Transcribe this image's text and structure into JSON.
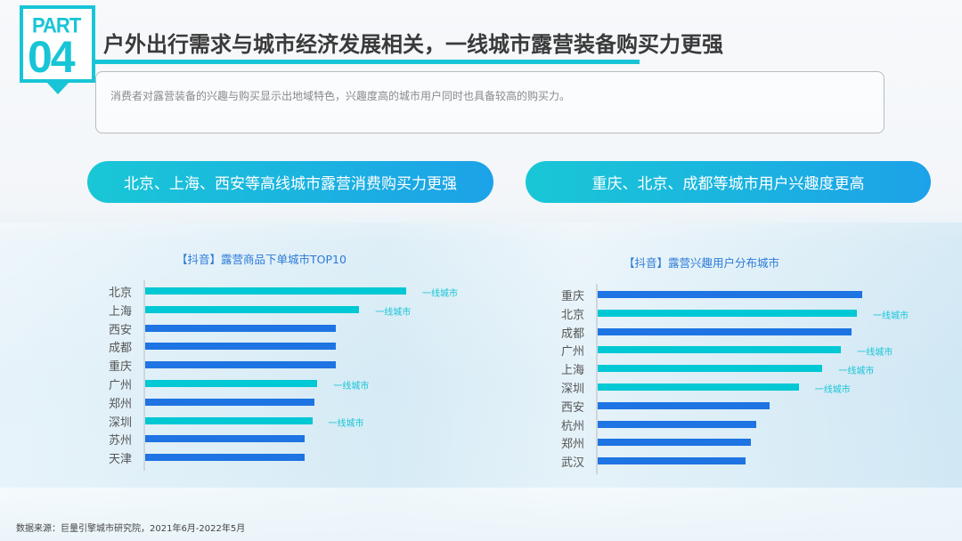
{
  "badge": {
    "part": "PART",
    "number": "04"
  },
  "header": {
    "title": "户外出行需求与城市经济发展相关，一线城市露营装备购买力更强"
  },
  "description": "消费者对露营装备的兴趣与购买显示出地域特色，兴趣度高的城市用户同时也具备较高的购买力。",
  "pills": [
    "北京、上海、西安等高线城市露营消费购买力更强",
    "重庆、北京、成都等城市用户兴趣度更高"
  ],
  "colors": {
    "accent": "#17c5d6",
    "tier1": "#00c8d4",
    "other": "#1e74e2"
  },
  "chart_data": [
    {
      "type": "bar",
      "orientation": "horizontal",
      "title": "【抖音】露营商品下单城市TOP10",
      "categories": [
        "北京",
        "上海",
        "西安",
        "成都",
        "重庆",
        "广州",
        "郑州",
        "深圳",
        "苏州",
        "天津"
      ],
      "values": [
        100,
        82,
        73,
        73,
        73,
        66,
        65,
        64,
        61,
        61
      ],
      "tier1": [
        true,
        true,
        false,
        false,
        false,
        true,
        false,
        true,
        false,
        false
      ],
      "annotation": "一线城市",
      "xlim": [
        0,
        100
      ]
    },
    {
      "type": "bar",
      "orientation": "horizontal",
      "title": "【抖音】露营兴趣用户分布城市",
      "categories": [
        "重庆",
        "北京",
        "成都",
        "广州",
        "上海",
        "深圳",
        "西安",
        "杭州",
        "郑州",
        "武汉"
      ],
      "values": [
        100,
        98,
        96,
        92,
        85,
        76,
        65,
        60,
        58,
        56
      ],
      "tier1": [
        false,
        true,
        false,
        true,
        true,
        true,
        false,
        false,
        false,
        false
      ],
      "annotation": "一线城市",
      "xlim": [
        0,
        100
      ]
    }
  ],
  "footer": {
    "source": "数据来源：巨量引擎城市研究院，2021年6月-2022年5月"
  }
}
